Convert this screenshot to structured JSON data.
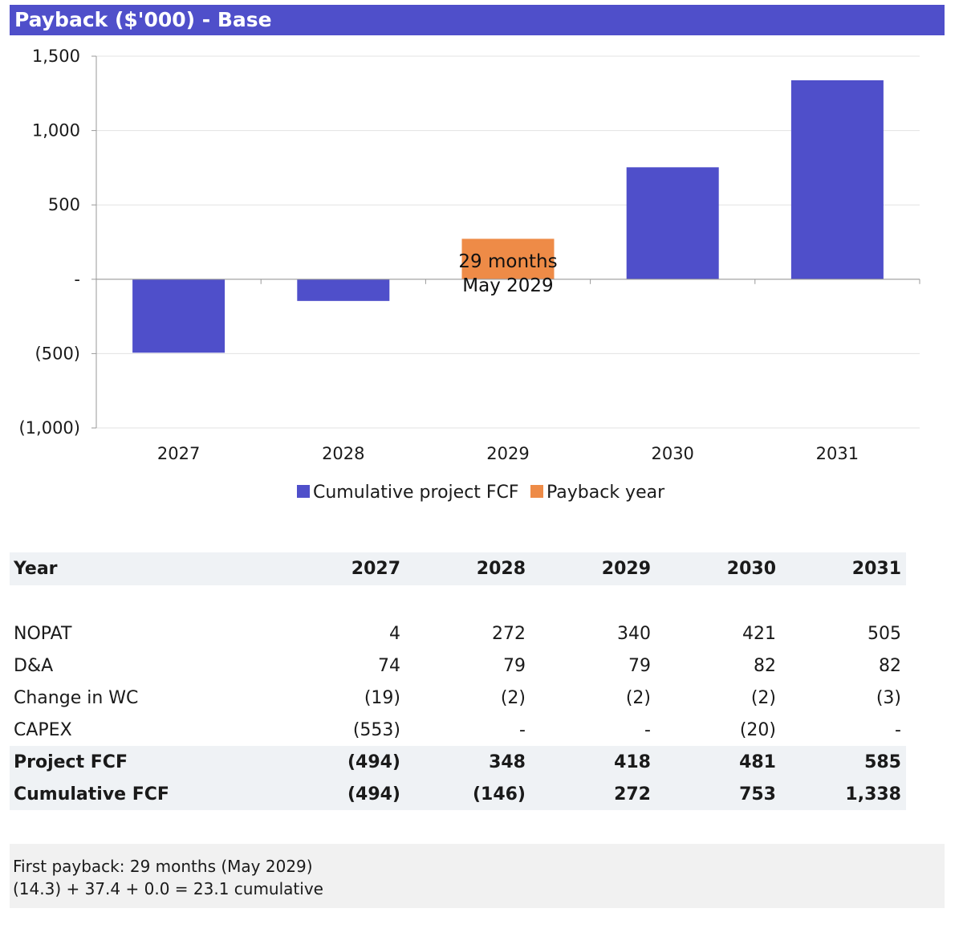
{
  "title": "Payback ($'000) - Base",
  "chart_data": {
    "type": "bar",
    "categories": [
      "2027",
      "2028",
      "2029",
      "2030",
      "2031"
    ],
    "series": [
      {
        "name": "Cumulative project FCF",
        "color": "#4f4fca",
        "values": [
          -494,
          -146,
          null,
          753,
          1338
        ]
      },
      {
        "name": "Payback year",
        "color": "#ee8b47",
        "values": [
          null,
          null,
          272,
          null,
          null
        ]
      }
    ],
    "bar_labels": [
      "29 months",
      "May 2029"
    ],
    "ylim": [
      -1000,
      1500
    ],
    "yticks": [
      -1000,
      -500,
      0,
      500,
      1000,
      1500
    ],
    "ytick_labels": [
      "(1,000)",
      "(500)",
      "-",
      "500",
      "1,000",
      "1,500"
    ],
    "grid": true,
    "legend_position": "bottom"
  },
  "table": {
    "header": [
      "Year",
      "2027",
      "2028",
      "2029",
      "2030",
      "2031"
    ],
    "rows": [
      {
        "label": "NOPAT",
        "values": [
          "4",
          "272",
          "340",
          "421",
          "505"
        ],
        "bold": false
      },
      {
        "label": "D&A",
        "values": [
          "74",
          "79",
          "79",
          "82",
          "82"
        ],
        "bold": false
      },
      {
        "label": "Change in WC",
        "values": [
          "(19)",
          "(2)",
          "(2)",
          "(2)",
          "(3)"
        ],
        "bold": false
      },
      {
        "label": "CAPEX",
        "values": [
          "(553)",
          "-",
          "-",
          "(20)",
          "-"
        ],
        "bold": false
      },
      {
        "label": "Project FCF",
        "values": [
          "(494)",
          "348",
          "418",
          "481",
          "585"
        ],
        "bold": true
      },
      {
        "label": "Cumulative FCF",
        "values": [
          "(494)",
          "(146)",
          "272",
          "753",
          "1,338"
        ],
        "bold": true
      }
    ]
  },
  "note": {
    "line1": "First payback: 29 months (May 2029)",
    "line2": "(14.3) + 37.4 + 0.0 = 23.1 cumulative"
  }
}
